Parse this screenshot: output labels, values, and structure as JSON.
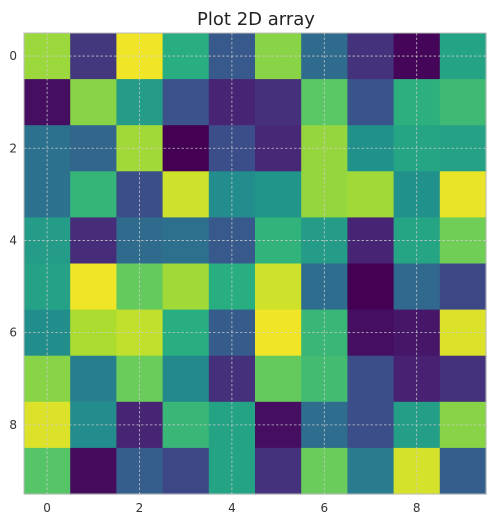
{
  "chart_data": {
    "type": "heatmap",
    "title": "Plot 2D array",
    "xlabel": "",
    "ylabel": "",
    "colormap": "viridis",
    "xlim": [
      -0.5,
      9.5
    ],
    "ylim": [
      9.5,
      -0.5
    ],
    "x_ticks": [
      0,
      2,
      4,
      6,
      8
    ],
    "y_ticks": [
      0,
      2,
      4,
      6,
      8
    ],
    "grid": true,
    "values": [
      [
        0.85,
        0.18,
        0.98,
        0.63,
        0.28,
        0.82,
        0.35,
        0.17,
        0.02,
        0.58
      ],
      [
        0.05,
        0.82,
        0.55,
        0.25,
        0.13,
        0.16,
        0.74,
        0.26,
        0.64,
        0.68
      ],
      [
        0.38,
        0.33,
        0.86,
        0.0,
        0.24,
        0.14,
        0.84,
        0.5,
        0.59,
        0.57
      ],
      [
        0.38,
        0.66,
        0.24,
        0.93,
        0.48,
        0.52,
        0.84,
        0.86,
        0.5,
        0.97
      ],
      [
        0.55,
        0.15,
        0.35,
        0.37,
        0.28,
        0.65,
        0.55,
        0.13,
        0.59,
        0.78
      ],
      [
        0.57,
        0.98,
        0.76,
        0.86,
        0.63,
        0.93,
        0.36,
        0.0,
        0.34,
        0.22
      ],
      [
        0.49,
        0.88,
        0.91,
        0.63,
        0.29,
        0.98,
        0.67,
        0.05,
        0.08,
        0.95
      ],
      [
        0.82,
        0.43,
        0.77,
        0.47,
        0.16,
        0.76,
        0.69,
        0.24,
        0.12,
        0.17
      ],
      [
        0.95,
        0.48,
        0.13,
        0.67,
        0.58,
        0.05,
        0.36,
        0.24,
        0.56,
        0.82
      ],
      [
        0.73,
        0.04,
        0.3,
        0.22,
        0.58,
        0.17,
        0.77,
        0.42,
        0.94,
        0.3
      ]
    ]
  }
}
